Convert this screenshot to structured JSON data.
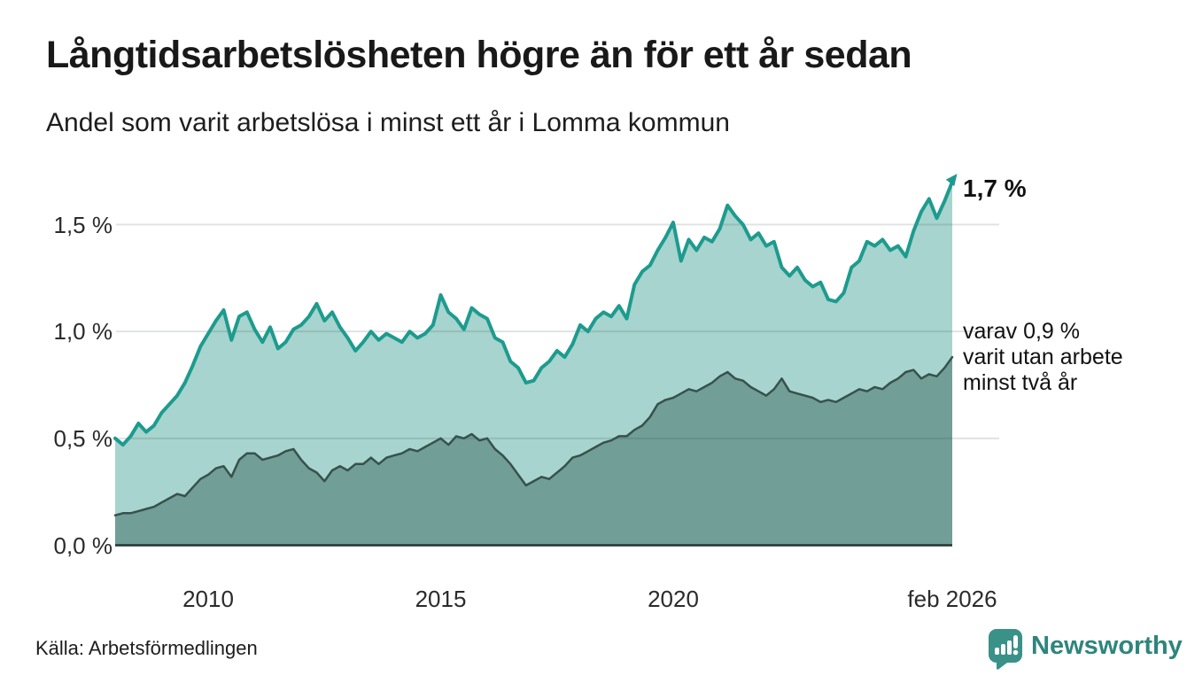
{
  "header": {
    "title": "Långtidsarbetslösheten högre än för ett år sedan",
    "subtitle": "Andel som varit arbetslösa i minst ett år i Lomma kommun"
  },
  "footer": {
    "source": "Källa: Arbetsförmedlingen",
    "brand": "Newsworthy"
  },
  "colors": {
    "series1_line": "#1d9b8e",
    "series1_fill": "#a7d4ce",
    "series2_line": "#37514d",
    "series2_fill": "#719e97",
    "baseline": "#263330",
    "gridline": "rgba(45,66,62,0.15)",
    "brand_teal": "#3a9187"
  },
  "chart_data": {
    "type": "area",
    "title": "Långtidsarbetslösheten högre än för ett år sedan",
    "subtitle": "Andel som varit arbetslösa i minst ett år i Lomma kommun",
    "unit": "%",
    "grid": "horizontal",
    "legend_position": "none",
    "x_domain": [
      2008.083,
      2026.083
    ],
    "ylim": [
      0,
      1.75
    ],
    "y_ticks": [
      {
        "label": "0,0 %",
        "value": 0.0
      },
      {
        "label": "0,5 %",
        "value": 0.5
      },
      {
        "label": "1,0 %",
        "value": 1.0
      },
      {
        "label": "1,5 %",
        "value": 1.5
      }
    ],
    "x_ticks": [
      {
        "label": "2010",
        "t": 2010.083
      },
      {
        "label": "2015",
        "t": 2015.083
      },
      {
        "label": "2020",
        "t": 2020.083
      },
      {
        "label": "feb 2026",
        "t": 2026.083
      }
    ],
    "annotations": {
      "end_value": "1,7 %",
      "secondary": [
        "varav 0,9 %",
        "varit utan arbete",
        "minst två år"
      ]
    },
    "series": [
      {
        "name": "Andel som varit arbetslösa i minst ett år",
        "line_color": "#1d9b8e",
        "fill_color": "#a7d4ce",
        "arrow_end": true,
        "end_value": 1.7,
        "values": [
          0.5,
          0.47,
          0.51,
          0.57,
          0.53,
          0.56,
          0.62,
          0.66,
          0.7,
          0.76,
          0.84,
          0.93,
          0.99,
          1.05,
          1.1,
          0.96,
          1.07,
          1.09,
          1.01,
          0.95,
          1.02,
          0.92,
          0.95,
          1.01,
          1.03,
          1.07,
          1.13,
          1.05,
          1.09,
          1.02,
          0.97,
          0.91,
          0.95,
          1.0,
          0.96,
          0.99,
          0.97,
          0.95,
          1.0,
          0.97,
          0.99,
          1.03,
          1.17,
          1.09,
          1.06,
          1.01,
          1.11,
          1.08,
          1.06,
          0.97,
          0.95,
          0.86,
          0.83,
          0.76,
          0.77,
          0.83,
          0.86,
          0.91,
          0.88,
          0.94,
          1.03,
          1.0,
          1.06,
          1.09,
          1.07,
          1.12,
          1.06,
          1.22,
          1.28,
          1.31,
          1.38,
          1.44,
          1.51,
          1.33,
          1.43,
          1.38,
          1.44,
          1.42,
          1.48,
          1.59,
          1.54,
          1.5,
          1.43,
          1.46,
          1.4,
          1.42,
          1.3,
          1.26,
          1.3,
          1.24,
          1.21,
          1.23,
          1.15,
          1.14,
          1.18,
          1.3,
          1.33,
          1.42,
          1.4,
          1.43,
          1.38,
          1.4,
          1.35,
          1.47,
          1.56,
          1.62,
          1.53,
          1.61,
          1.7
        ]
      },
      {
        "name": "varav utan arbete minst två år",
        "line_color": "#37514d",
        "fill_color": "#719e97",
        "arrow_end": false,
        "end_value": 0.9,
        "values": [
          0.14,
          0.15,
          0.15,
          0.16,
          0.17,
          0.18,
          0.2,
          0.22,
          0.24,
          0.23,
          0.27,
          0.31,
          0.33,
          0.36,
          0.37,
          0.32,
          0.4,
          0.43,
          0.43,
          0.4,
          0.41,
          0.42,
          0.44,
          0.45,
          0.4,
          0.36,
          0.34,
          0.3,
          0.35,
          0.37,
          0.35,
          0.38,
          0.38,
          0.41,
          0.38,
          0.41,
          0.42,
          0.43,
          0.45,
          0.44,
          0.46,
          0.48,
          0.5,
          0.47,
          0.51,
          0.5,
          0.52,
          0.49,
          0.5,
          0.45,
          0.42,
          0.38,
          0.33,
          0.28,
          0.3,
          0.32,
          0.31,
          0.34,
          0.37,
          0.41,
          0.42,
          0.44,
          0.46,
          0.48,
          0.49,
          0.51,
          0.51,
          0.54,
          0.56,
          0.6,
          0.66,
          0.68,
          0.69,
          0.71,
          0.73,
          0.72,
          0.74,
          0.76,
          0.79,
          0.81,
          0.78,
          0.77,
          0.74,
          0.72,
          0.7,
          0.73,
          0.78,
          0.72,
          0.71,
          0.7,
          0.69,
          0.67,
          0.68,
          0.67,
          0.69,
          0.71,
          0.73,
          0.72,
          0.74,
          0.73,
          0.76,
          0.78,
          0.81,
          0.82,
          0.78,
          0.8,
          0.79,
          0.83,
          0.88
        ]
      }
    ]
  }
}
